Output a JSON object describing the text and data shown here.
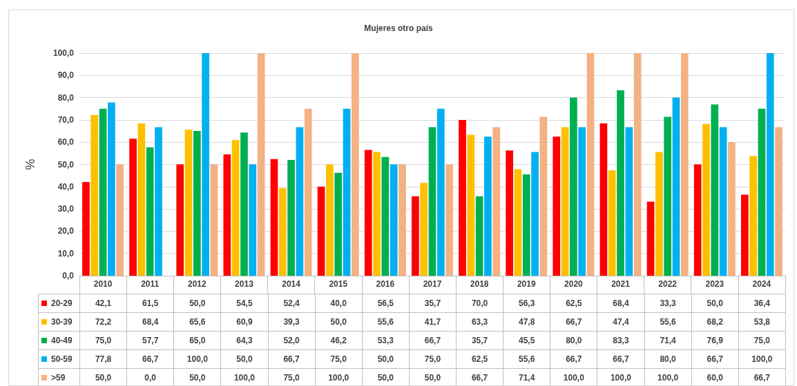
{
  "chart_data": {
    "type": "bar",
    "title": "Mujeres otro país",
    "ylabel": "%",
    "categories": [
      "2010",
      "2011",
      "2012",
      "2013",
      "2014",
      "2015",
      "2016",
      "2017",
      "2018",
      "2019",
      "2020",
      "2021",
      "2022",
      "2023",
      "2024"
    ],
    "ylim": [
      0,
      100
    ],
    "yticks": [
      {
        "value": 0,
        "label": "0,0"
      },
      {
        "value": 10,
        "label": "10,0"
      },
      {
        "value": 20,
        "label": "20,0"
      },
      {
        "value": 30,
        "label": "30,0"
      },
      {
        "value": 40,
        "label": "40,0"
      },
      {
        "value": 50,
        "label": "50,0"
      },
      {
        "value": 60,
        "label": "60,0"
      },
      {
        "value": 70,
        "label": "70,0"
      },
      {
        "value": 80,
        "label": "80,0"
      },
      {
        "value": 90,
        "label": "90,0"
      },
      {
        "value": 100,
        "label": "100,0"
      }
    ],
    "grid": "y",
    "legend": "bottom",
    "series": [
      {
        "name": "20-29",
        "color": "#ff0000",
        "values": [
          42.1,
          61.5,
          50.0,
          54.5,
          52.4,
          40.0,
          56.5,
          35.7,
          70.0,
          56.3,
          62.5,
          68.4,
          33.3,
          50.0,
          36.4
        ],
        "value_labels": [
          "42,1",
          "61,5",
          "50,0",
          "54,5",
          "52,4",
          "40,0",
          "56,5",
          "35,7",
          "70,0",
          "56,3",
          "62,5",
          "68,4",
          "33,3",
          "50,0",
          "36,4"
        ]
      },
      {
        "name": "30-39",
        "color": "#ffc000",
        "values": [
          72.2,
          68.4,
          65.6,
          60.9,
          39.3,
          50.0,
          55.6,
          41.7,
          63.3,
          47.8,
          66.7,
          47.4,
          55.6,
          68.2,
          53.8
        ],
        "value_labels": [
          "72,2",
          "68,4",
          "65,6",
          "60,9",
          "39,3",
          "50,0",
          "55,6",
          "41,7",
          "63,3",
          "47,8",
          "66,7",
          "47,4",
          "55,6",
          "68,2",
          "53,8"
        ]
      },
      {
        "name": "40-49",
        "color": "#00b050",
        "values": [
          75.0,
          57.7,
          65.0,
          64.3,
          52.0,
          46.2,
          53.3,
          66.7,
          35.7,
          45.5,
          80.0,
          83.3,
          71.4,
          76.9,
          75.0
        ],
        "value_labels": [
          "75,0",
          "57,7",
          "65,0",
          "64,3",
          "52,0",
          "46,2",
          "53,3",
          "66,7",
          "35,7",
          "45,5",
          "80,0",
          "83,3",
          "71,4",
          "76,9",
          "75,0"
        ]
      },
      {
        "name": "50-59",
        "color": "#00b0f0",
        "values": [
          77.8,
          66.7,
          100.0,
          50.0,
          66.7,
          75.0,
          50.0,
          75.0,
          62.5,
          55.6,
          66.7,
          66.7,
          80.0,
          66.7,
          100.0
        ],
        "value_labels": [
          "77,8",
          "66,7",
          "100,0",
          "50,0",
          "66,7",
          "75,0",
          "50,0",
          "75,0",
          "62,5",
          "55,6",
          "66,7",
          "66,7",
          "80,0",
          "66,7",
          "100,0"
        ]
      },
      {
        "name": ">59",
        "color": "#f4b183",
        "values": [
          50.0,
          0.0,
          50.0,
          100.0,
          75.0,
          100.0,
          50.0,
          50.0,
          66.7,
          71.4,
          100.0,
          100.0,
          100.0,
          60.0,
          66.7
        ],
        "value_labels": [
          "50,0",
          "0,0",
          "50,0",
          "100,0",
          "75,0",
          "100,0",
          "50,0",
          "50,0",
          "66,7",
          "71,4",
          "100,0",
          "100,0",
          "100,0",
          "60,0",
          "66,7"
        ]
      }
    ]
  }
}
